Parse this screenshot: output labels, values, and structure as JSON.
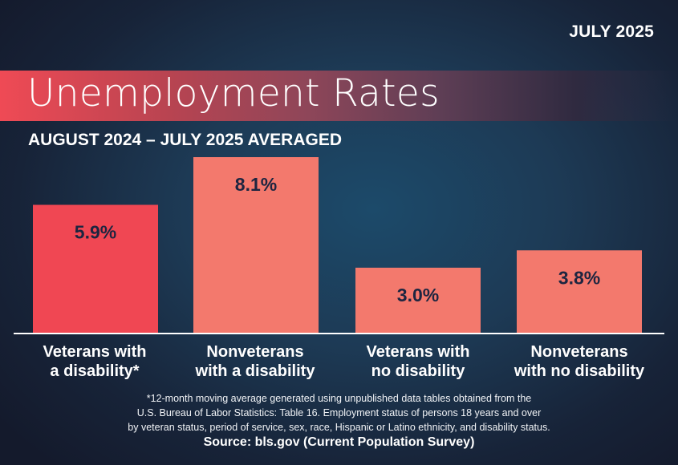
{
  "header": {
    "date": "JULY 2025",
    "title": "Unemployment Rates",
    "subtitle": "AUGUST 2024 – JULY 2025 AVERAGED"
  },
  "colors": {
    "highlight_bar": "#f04753",
    "bar": "#f3796d",
    "value_text": "#1d2540",
    "axis_line": "#ffffff"
  },
  "chart_data": {
    "type": "bar",
    "title": "Unemployment Rates",
    "subtitle": "AUGUST 2024 – JULY 2025 AVERAGED",
    "xlabel": "",
    "ylabel": "",
    "ylim": [
      0,
      8.1
    ],
    "grid": false,
    "categories": [
      [
        "Veterans with",
        "a disability*"
      ],
      [
        "Nonveterans",
        "with a disability"
      ],
      [
        "Veterans with",
        "no disability"
      ],
      [
        "Nonveterans",
        "with no disability"
      ]
    ],
    "values": [
      5.9,
      8.1,
      3.0,
      3.8
    ],
    "data_labels": [
      "5.9%",
      "8.1%",
      "3.0%",
      "3.8%"
    ],
    "highlighted_index": 0
  },
  "footer": {
    "footnote_lines": [
      "*12-month moving average generated using unpublished data tables obtained from the",
      "U.S. Bureau of Labor Statistics: Table 16. Employment status of persons 18 years and over",
      "by veteran status, period of service, sex, race, Hispanic or Latino ethnicity, and disability status."
    ],
    "source": "Source: bls.gov (Current Population Survey)"
  }
}
